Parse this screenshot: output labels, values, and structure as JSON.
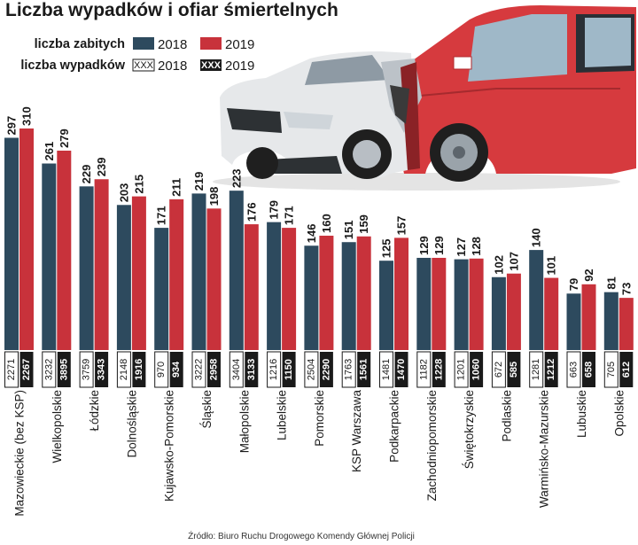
{
  "chart_data": {
    "type": "bar",
    "title": "Liczba wypadków i ofiar śmiertelnych",
    "legend": {
      "deaths_label": "liczba zabitych",
      "accidents_label": "liczba wypadków",
      "year_2018": "2018",
      "year_2019": "2019",
      "box_placeholder": "XXX"
    },
    "categories": [
      "Mazowieckie (bez KSP)",
      "Wielkopolskie",
      "Łódzkie",
      "Dolnośląskie",
      "Kujawsko-Pomorskie",
      "Śląskie",
      "Małopolskie",
      "Lubelskie",
      "Pomorskie",
      "KSP Warszawa",
      "Podkarpackie",
      "Zachodniopomorskie",
      "Świętokrzyskie",
      "Podlaskie",
      "Warmińsko-Mazurskie",
      "Lubuskie",
      "Opolskie"
    ],
    "series": [
      {
        "name": "liczba zabitych 2018",
        "color": "#2d4a5e",
        "values": [
          297,
          261,
          229,
          203,
          171,
          219,
          223,
          179,
          146,
          151,
          125,
          129,
          127,
          102,
          140,
          79,
          81
        ]
      },
      {
        "name": "liczba zabitych 2019",
        "color": "#c8323b",
        "values": [
          310,
          279,
          239,
          215,
          211,
          198,
          176,
          171,
          160,
          159,
          157,
          129,
          128,
          107,
          101,
          92,
          73
        ]
      }
    ],
    "accidents": [
      {
        "name": "liczba wypadków 2018",
        "values": [
          2271,
          3232,
          3759,
          2148,
          970,
          3222,
          3404,
          1216,
          2504,
          1763,
          1481,
          1182,
          1201,
          672,
          1281,
          663,
          705
        ]
      },
      {
        "name": "liczba wypadków 2019",
        "values": [
          2267,
          3895,
          3343,
          1916,
          934,
          2958,
          3133,
          1150,
          2290,
          1561,
          1470,
          1228,
          1060,
          585,
          1212,
          658,
          612
        ]
      }
    ],
    "ylim": [
      0,
      310
    ],
    "source": "Źródło: Biuro Ruchu Drogowego Komendy Głównej Policji"
  },
  "colors": {
    "dark": "#2d4a5e",
    "red": "#c8323b",
    "ink": "#1a1a1a"
  }
}
